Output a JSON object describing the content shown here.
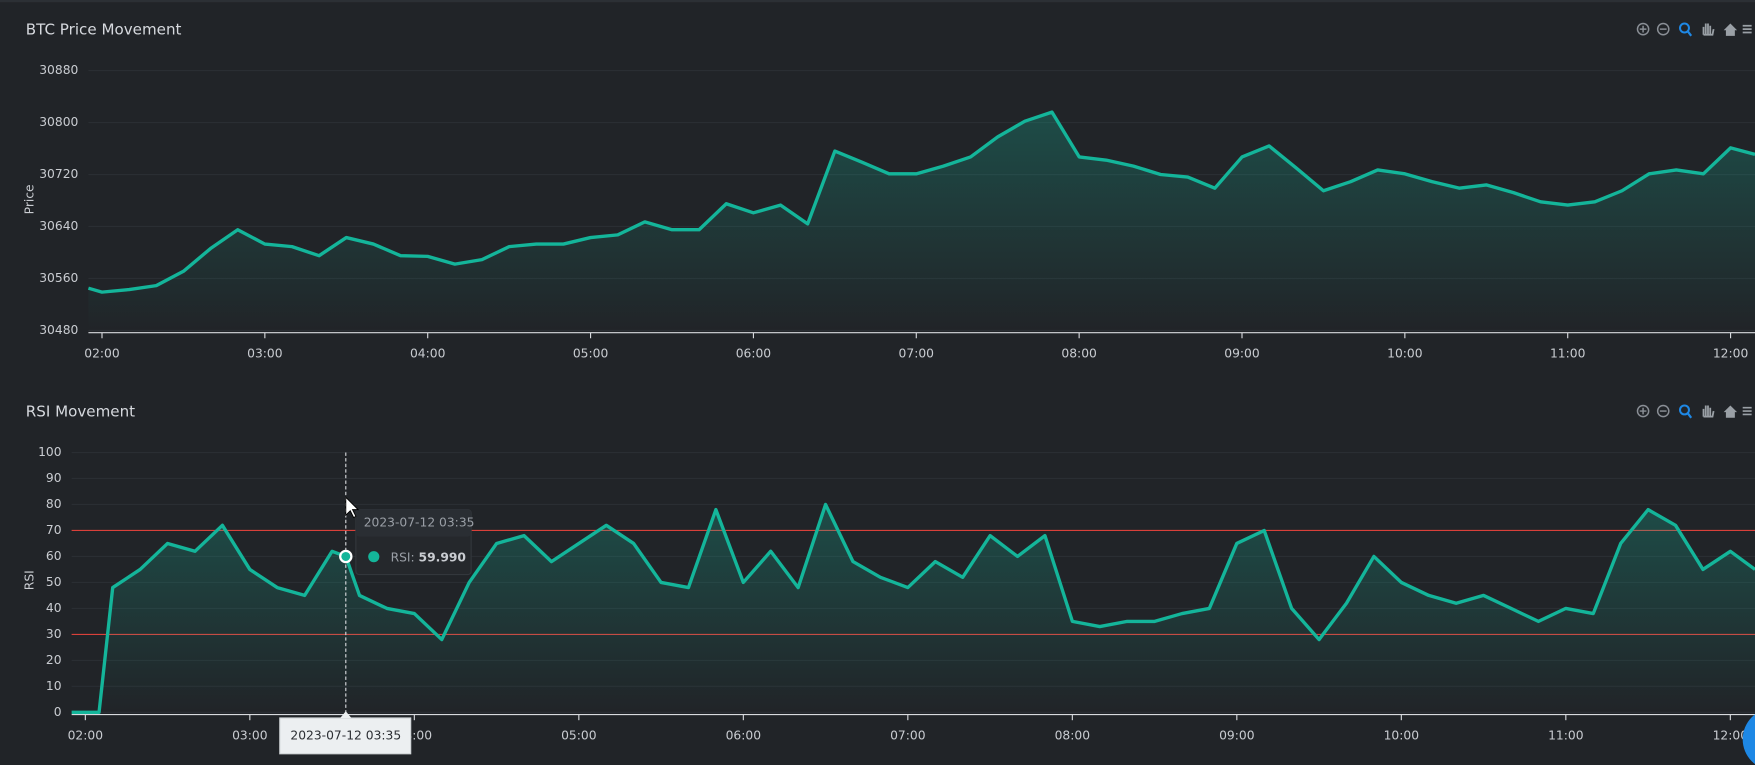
{
  "chart_data": [
    {
      "type": "line",
      "title": "BTC Price Movement",
      "ylabel": "Price",
      "color": "#14b59a",
      "grid": true,
      "x": [
        "01:55",
        "02:00",
        "02:10",
        "02:20",
        "02:30",
        "02:40",
        "02:50",
        "03:00",
        "03:10",
        "03:20",
        "03:30",
        "03:40",
        "03:50",
        "04:00",
        "04:10",
        "04:20",
        "04:30",
        "04:40",
        "04:50",
        "05:00",
        "05:10",
        "05:20",
        "05:30",
        "05:40",
        "05:50",
        "06:00",
        "06:10",
        "06:20",
        "06:30",
        "06:40",
        "06:50",
        "07:00",
        "07:10",
        "07:20",
        "07:30",
        "07:40",
        "07:50",
        "08:00",
        "08:10",
        "08:20",
        "08:30",
        "08:40",
        "08:50",
        "09:00",
        "09:10",
        "09:20",
        "09:30",
        "09:40",
        "09:50",
        "10:00",
        "10:10",
        "10:20",
        "10:30",
        "10:40",
        "10:50",
        "11:00",
        "11:10",
        "11:20",
        "11:30",
        "11:40",
        "11:50",
        "12:00",
        "12:09"
      ],
      "values": [
        30545,
        30539,
        30543,
        30549,
        30571,
        30606,
        30635,
        30613,
        30609,
        30595,
        30623,
        30613,
        30595,
        30594,
        30582,
        30589,
        30609,
        30613,
        30613,
        30623,
        30627,
        30647,
        30635,
        30635,
        30675,
        30661,
        30673,
        30644,
        30756,
        30739,
        30721,
        30721,
        30733,
        30747,
        30778,
        30802,
        30816,
        30747,
        30742,
        30733,
        30720,
        30716,
        30699,
        30747,
        30764,
        30730,
        30695,
        30709,
        30727,
        30721,
        30709,
        30699,
        30704,
        30692,
        30678,
        30673,
        30678,
        30695,
        30721,
        30727,
        30721,
        30761,
        30751
      ],
      "xlim": [
        "01:55",
        "12:09"
      ],
      "xticks": [
        "02:00",
        "03:00",
        "04:00",
        "05:00",
        "06:00",
        "07:00",
        "08:00",
        "09:00",
        "10:00",
        "11:00",
        "12:00"
      ],
      "ylim": [
        30480,
        30880
      ],
      "yticks": [
        30480,
        30560,
        30640,
        30720,
        30800,
        30880
      ]
    },
    {
      "type": "line",
      "title": "RSI Movement",
      "ylabel": "RSI",
      "color": "#14b59a",
      "grid": true,
      "x": [
        "01:55",
        "02:00",
        "02:05",
        "02:10",
        "02:20",
        "02:30",
        "02:40",
        "02:50",
        "03:00",
        "03:10",
        "03:20",
        "03:30",
        "03:35",
        "03:40",
        "03:50",
        "04:00",
        "04:10",
        "04:20",
        "04:30",
        "04:40",
        "04:50",
        "05:00",
        "05:10",
        "05:20",
        "05:30",
        "05:40",
        "05:50",
        "06:00",
        "06:10",
        "06:20",
        "06:30",
        "06:40",
        "06:50",
        "07:00",
        "07:10",
        "07:20",
        "07:30",
        "07:40",
        "07:50",
        "08:00",
        "08:10",
        "08:20",
        "08:30",
        "08:40",
        "08:50",
        "09:00",
        "09:10",
        "09:20",
        "09:30",
        "09:40",
        "09:50",
        "10:00",
        "10:10",
        "10:20",
        "10:30",
        "10:40",
        "10:50",
        "11:00",
        "11:10",
        "11:20",
        "11:30",
        "11:40",
        "11:50",
        "12:00",
        "12:09"
      ],
      "values": [
        0,
        0,
        0,
        48,
        55,
        65,
        62,
        72,
        55,
        48,
        45,
        62,
        59.99,
        45,
        40,
        38,
        28,
        50,
        65,
        68,
        58,
        65,
        72,
        65,
        50,
        48,
        78,
        50,
        62,
        48,
        80,
        58,
        52,
        48,
        58,
        52,
        68,
        60,
        68,
        35,
        33,
        35,
        35,
        38,
        40,
        65,
        70,
        40,
        28,
        42,
        60,
        50,
        45,
        42,
        45,
        40,
        35,
        40,
        38,
        65,
        78,
        72,
        55,
        62,
        55
      ],
      "xlim": [
        "01:55",
        "12:09"
      ],
      "xticks": [
        "02:00",
        "03:00",
        "04:00",
        "05:00",
        "06:00",
        "07:00",
        "08:00",
        "09:00",
        "10:00",
        "11:00",
        "12:00"
      ],
      "ylim": [
        0,
        100
      ],
      "yticks": [
        0,
        10,
        20,
        30,
        40,
        50,
        60,
        70,
        80,
        90,
        100
      ],
      "reference_lines": {
        "values": [
          70,
          30
        ],
        "color": "#d9403a"
      },
      "tooltip": {
        "date": "2023-07-12 03:35",
        "label": "RSI:",
        "value": "59.990"
      }
    }
  ]
}
